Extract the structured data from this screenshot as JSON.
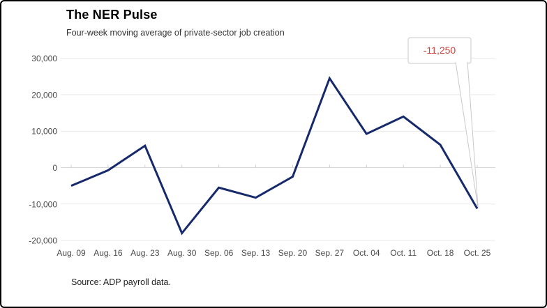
{
  "header": {
    "title": "The NER Pulse",
    "subtitle": "Four-week moving average of private-sector job creation"
  },
  "source": {
    "text": "Source: ADP payroll data."
  },
  "callout": {
    "label": "-11,250",
    "text_color": "#cf423b",
    "border_color": "#c9c9c9",
    "fill_color": "#ffffff"
  },
  "colors": {
    "line": "#16296b",
    "grid": "#e9e9e9",
    "zero_line": "#d6d6d6",
    "axis_tick": "#cfcfcf",
    "axis_text": "#494949",
    "frame": "#000000"
  },
  "chart_data": {
    "type": "line",
    "title": "The NER Pulse",
    "subtitle": "Four-week moving average of private-sector job creation",
    "source": "Source: ADP payroll data.",
    "categories": [
      "Aug. 09",
      "Aug. 16",
      "Aug. 23",
      "Aug. 30",
      "Sep. 06",
      "Sep. 13",
      "Sep. 20",
      "Sep. 27",
      "Oct. 04",
      "Oct. 11",
      "Oct. 18",
      "Oct. 25"
    ],
    "series": [
      {
        "name": "Four-week moving average of private-sector job creation",
        "values": [
          -5000,
          -750,
          6000,
          -18000,
          -5500,
          -8250,
          -2500,
          24500,
          9250,
          14000,
          6250,
          -11250
        ]
      }
    ],
    "ylim": [
      -20000,
      30000
    ],
    "yticks": [
      30000,
      20000,
      10000,
      0,
      -10000,
      -20000
    ],
    "grid": true,
    "legend_position": "none",
    "annotation": {
      "category": "Oct. 25",
      "value": -11250,
      "label": "-11,250"
    }
  }
}
